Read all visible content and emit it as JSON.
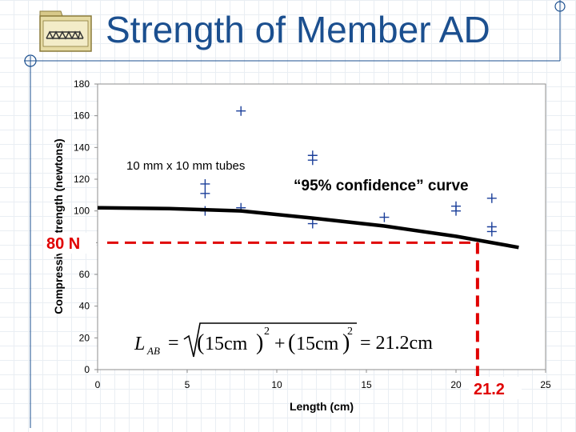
{
  "slide": {
    "title": "Strength of Member AD",
    "colors": {
      "title": "#1b4f8f",
      "accent_line": "#1b4f8f",
      "icon": "#d8c98a",
      "reference": "#e00000"
    },
    "icon_name": "bridge-truss-icon"
  },
  "chart_data": {
    "type": "scatter",
    "xlabel": "Length (cm)",
    "ylabel": "Compressive Strength (newtons)",
    "xlim": [
      0,
      25
    ],
    "ylim": [
      0,
      180
    ],
    "xticks": [
      "0",
      "5",
      "10",
      "15",
      "20",
      "25"
    ],
    "yticks": [
      "0",
      "20",
      "40",
      "60",
      "80",
      "100",
      "120",
      "140",
      "160",
      "180"
    ],
    "grid": false,
    "series_label": "10 mm x 10 mm tubes",
    "points": [
      [
        6,
        100
      ],
      [
        6,
        111
      ],
      [
        6,
        117
      ],
      [
        8,
        102
      ],
      [
        8,
        163
      ],
      [
        12,
        92
      ],
      [
        12,
        132
      ],
      [
        12,
        135
      ],
      [
        16,
        96
      ],
      [
        20,
        100
      ],
      [
        20,
        103
      ],
      [
        22,
        87
      ],
      [
        22,
        90
      ],
      [
        22,
        108
      ]
    ],
    "curve": {
      "label": "“95% confidence” curve",
      "points": [
        [
          0,
          102
        ],
        [
          4,
          101.5
        ],
        [
          8,
          100
        ],
        [
          12,
          95.5
        ],
        [
          16,
          90.5
        ],
        [
          20,
          84
        ],
        [
          23.5,
          77
        ]
      ]
    },
    "reference": {
      "y_label": "80 N",
      "y": 80,
      "x_label": "21.2",
      "x": 21.2
    },
    "equation": {
      "lhs_var": "L",
      "lhs_sub": "AB",
      "eq": "=",
      "term1": "15cm",
      "term2": "15cm",
      "exp": "2",
      "plus": "+",
      "result": "= 21.2cm"
    }
  }
}
